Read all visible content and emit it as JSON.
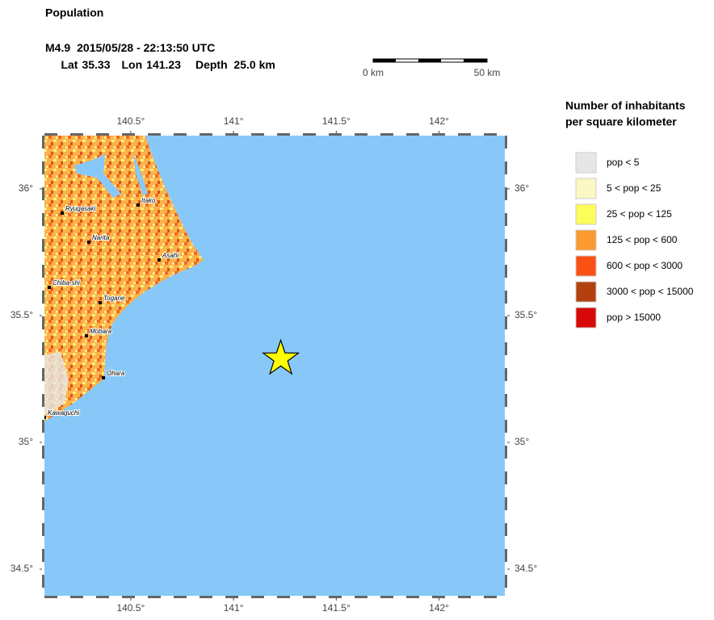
{
  "title": "Population",
  "event": {
    "magnitude": "M4.9",
    "time": "2015/05/28 - 22:13:50 UTC",
    "lat": {
      "label": "Lat",
      "value": 35.33
    },
    "lon": {
      "label": "Lon",
      "value": 141.23
    },
    "depth": "Depth  25.0 km"
  },
  "scale_bar": {
    "start_label": "0 km",
    "end_label": "50 km"
  },
  "map": {
    "lonlim": [
      140.08,
      142.32
    ],
    "latlim": [
      34.395,
      36.21
    ],
    "lonticks": [
      {
        "value": 140.5,
        "label": "140.5°"
      },
      {
        "value": 141,
        "label": "141°"
      },
      {
        "value": 141.5,
        "label": "141.5°"
      },
      {
        "value": 142,
        "label": "142°"
      }
    ],
    "latticks": [
      {
        "value": 34.5,
        "label": "34.5°"
      },
      {
        "value": 35,
        "label": "35°"
      },
      {
        "value": 35.5,
        "label": "35.5°"
      },
      {
        "value": 36,
        "label": "36°"
      }
    ],
    "water_color": "#87c8f8",
    "cities": [
      "Itako",
      "Ryugasaki",
      "Narita",
      "Asahi",
      "Chiba-shi",
      "Togane",
      "Mobara",
      "Ohara",
      "Kawaguchi"
    ]
  },
  "legend": {
    "title": [
      "Number of inhabitants",
      "per square kilometer"
    ],
    "items": [
      {
        "label": "pop < 5",
        "color": "#e6e6e6"
      },
      {
        "label": "5 < pop < 25",
        "color": "#fbf8c3"
      },
      {
        "label": "25 < pop < 125",
        "color": "#fcfc5a"
      },
      {
        "label": "125 < pop < 600",
        "color": "#fb9a2e"
      },
      {
        "label": "600 < pop < 3000",
        "color": "#fb5014"
      },
      {
        "label": "3000 < pop < 15000",
        "color": "#b4400f"
      },
      {
        "label": "pop > 15000",
        "color": "#d70808"
      }
    ]
  }
}
